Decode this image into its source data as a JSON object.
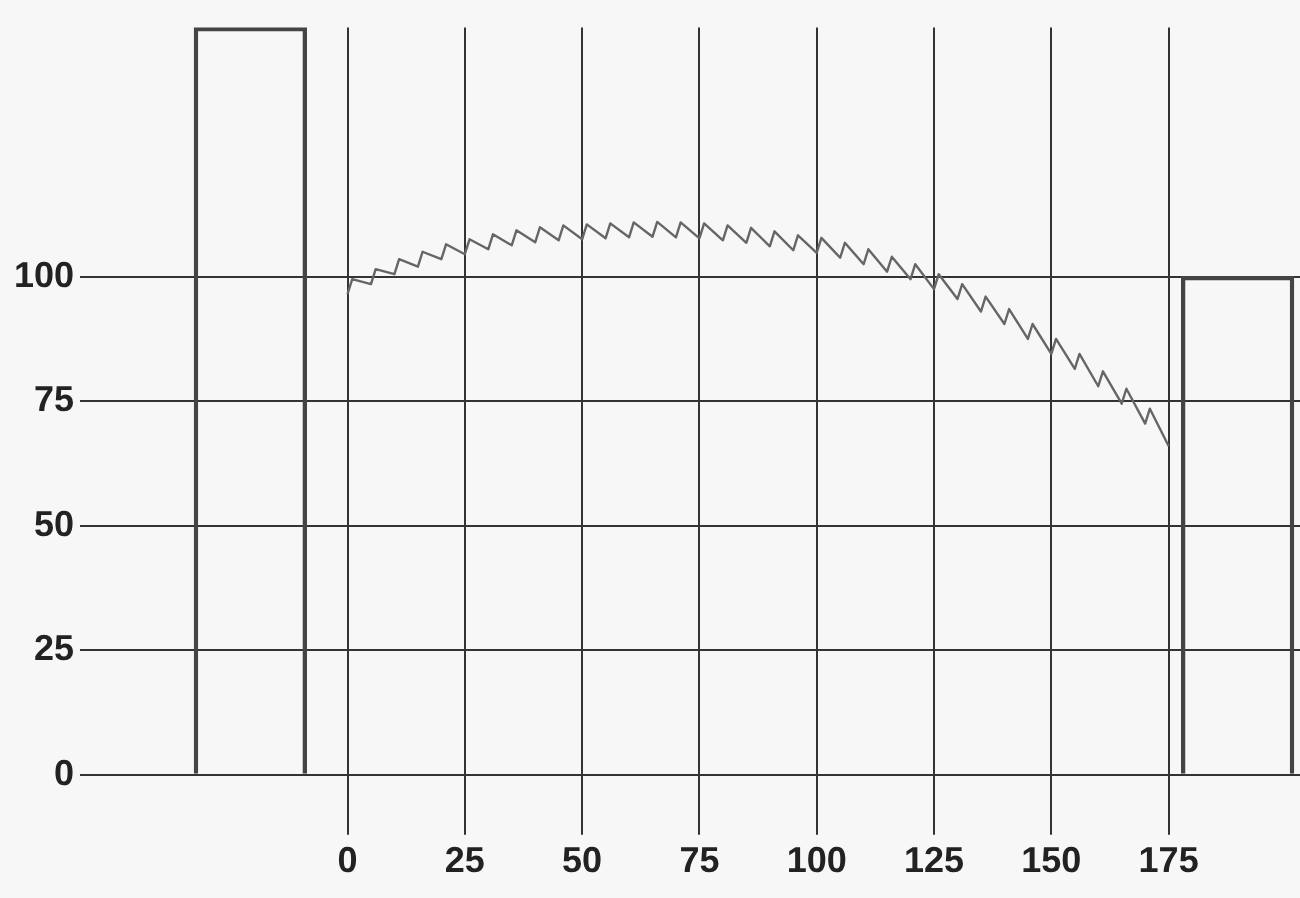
{
  "chart_data": {
    "type": "line",
    "xlim": [
      -57,
      203
    ],
    "ylim": [
      0,
      150
    ],
    "xticks": [
      0,
      25,
      50,
      75,
      100,
      125,
      150,
      175
    ],
    "yticks": [
      0,
      25,
      50,
      75,
      100
    ],
    "grid": true,
    "marker": "none",
    "series": [
      {
        "type": "bar",
        "color": "#444444",
        "x": [
          -20.7,
          189.7
        ],
        "values": [
          150,
          100
        ]
      },
      {
        "color": "#666666",
        "x": [
          0,
          1,
          5,
          6,
          10,
          11,
          15,
          16,
          20,
          21,
          25,
          26,
          30,
          31,
          35,
          36,
          40,
          41,
          45,
          46,
          50,
          51,
          55,
          56,
          60,
          61,
          65,
          66,
          70,
          71,
          75,
          76,
          80,
          81,
          85,
          86,
          90,
          91,
          95,
          96,
          100,
          101,
          105,
          106,
          110,
          111,
          115,
          116,
          120,
          121,
          125,
          126,
          130,
          131,
          135,
          136,
          140,
          141,
          145,
          146,
          150,
          151,
          155,
          156,
          160,
          161,
          165,
          166,
          170,
          171,
          175
        ],
        "values": [
          96.5,
          99.5,
          98.5,
          101.5,
          100.5,
          103.5,
          102,
          105,
          103.5,
          106.5,
          104.5,
          107.5,
          105.5,
          108.5,
          106.3,
          109.3,
          106.9,
          109.9,
          107.3,
          110.3,
          107.5,
          110.5,
          107.7,
          110.7,
          107.9,
          110.9,
          108,
          111,
          107.9,
          110.9,
          107.7,
          110.7,
          107.3,
          110.3,
          106.8,
          109.8,
          106.1,
          109.1,
          105.3,
          108.3,
          104.8,
          107.8,
          103.8,
          106.8,
          102.5,
          105.5,
          101,
          104,
          99.5,
          102.5,
          97.5,
          100.5,
          95.5,
          98.5,
          93,
          96,
          90.5,
          93.5,
          87.5,
          90.5,
          84.5,
          87.5,
          81.5,
          84.5,
          78,
          81,
          74.5,
          77.5,
          70.5,
          73.5,
          66
        ]
      }
    ]
  }
}
